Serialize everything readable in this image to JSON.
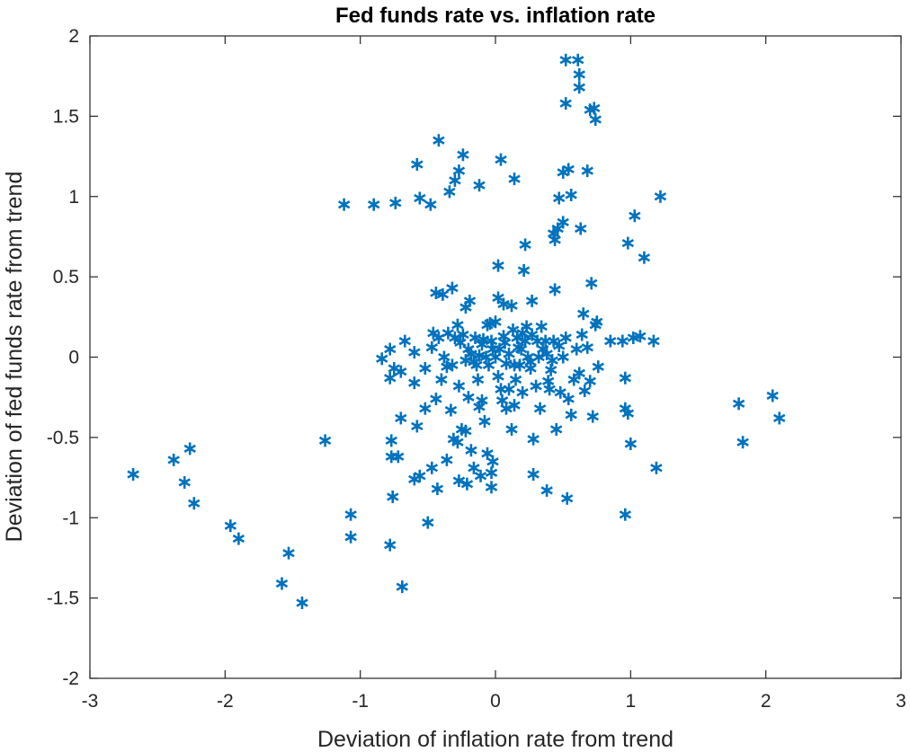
{
  "chart_data": {
    "type": "scatter",
    "title": "Fed funds rate vs. inflation rate",
    "xlabel": "Deviation of inflation rate from trend",
    "ylabel": "Deviation of fed funds rate from trend",
    "xlim": [
      -3,
      3
    ],
    "ylim": [
      -2,
      2
    ],
    "xticks": [
      -3,
      -2,
      -1,
      0,
      1,
      2,
      3
    ],
    "yticks": [
      -2,
      -1.5,
      -1,
      -0.5,
      0,
      0.5,
      1,
      1.5,
      2
    ],
    "xtick_labels": [
      "-3",
      "-2",
      "-1",
      "0",
      "1",
      "2",
      "3"
    ],
    "ytick_labels": [
      "-2",
      "-1.5",
      "-1",
      "-0.5",
      "0",
      "0.5",
      "1",
      "1.5",
      "2"
    ],
    "grid": false,
    "marker": "*",
    "color": "#0072BD",
    "axis_color": "#262626",
    "points": [
      [
        -2.68,
        -0.73
      ],
      [
        -2.38,
        -0.64
      ],
      [
        -2.3,
        -0.78
      ],
      [
        -2.26,
        -0.57
      ],
      [
        -2.23,
        -0.91
      ],
      [
        -1.96,
        -1.05
      ],
      [
        -1.9,
        -1.13
      ],
      [
        -1.53,
        -1.22
      ],
      [
        -1.58,
        -1.41
      ],
      [
        -1.43,
        -1.53
      ],
      [
        -1.26,
        -0.52
      ],
      [
        -1.07,
        -0.98
      ],
      [
        -1.07,
        -1.12
      ],
      [
        -0.78,
        -1.17
      ],
      [
        -0.76,
        -0.87
      ],
      [
        -0.77,
        -0.52
      ],
      [
        -0.77,
        -0.62
      ],
      [
        -0.72,
        -0.62
      ],
      [
        -0.69,
        -1.43
      ],
      [
        -0.5,
        -1.03
      ],
      [
        -0.47,
        -0.69
      ],
      [
        -0.43,
        -0.82
      ],
      [
        -0.6,
        -0.76
      ],
      [
        -0.36,
        -0.64
      ],
      [
        -0.56,
        -0.74
      ],
      [
        -0.27,
        -0.77
      ],
      [
        -0.21,
        -0.79
      ],
      [
        -0.16,
        -0.69
      ],
      [
        -0.11,
        -0.74
      ],
      [
        -0.06,
        -0.6
      ],
      [
        -0.03,
        -0.72
      ],
      [
        -0.02,
        -0.65
      ],
      [
        -0.03,
        -0.81
      ],
      [
        0.28,
        -0.73
      ],
      [
        0.38,
        -0.83
      ],
      [
        0.53,
        -0.88
      ],
      [
        0.96,
        -0.98
      ],
      [
        1.0,
        -0.54
      ],
      [
        1.19,
        -0.69
      ],
      [
        1.83,
        -0.53
      ],
      [
        1.8,
        -0.29
      ],
      [
        2.05,
        -0.24
      ],
      [
        2.1,
        -0.38
      ],
      [
        -1.12,
        0.95
      ],
      [
        -0.9,
        0.95
      ],
      [
        -0.74,
        0.96
      ],
      [
        -0.56,
        0.99
      ],
      [
        -0.48,
        0.95
      ],
      [
        -0.58,
        1.2
      ],
      [
        -0.42,
        1.35
      ],
      [
        -0.34,
        1.03
      ],
      [
        -0.3,
        1.1
      ],
      [
        -0.27,
        1.16
      ],
      [
        -0.24,
        1.26
      ],
      [
        -0.12,
        1.07
      ],
      [
        0.04,
        1.23
      ],
      [
        0.14,
        1.11
      ],
      [
        0.47,
        0.99
      ],
      [
        0.5,
        1.15
      ],
      [
        0.54,
        1.17
      ],
      [
        0.56,
        1.01
      ],
      [
        0.68,
        1.16
      ],
      [
        0.52,
        1.58
      ],
      [
        0.62,
        1.68
      ],
      [
        0.62,
        1.76
      ],
      [
        0.7,
        1.54
      ],
      [
        0.73,
        1.55
      ],
      [
        0.74,
        1.48
      ],
      [
        0.52,
        1.85
      ],
      [
        0.61,
        1.85
      ],
      [
        0.43,
        0.77
      ],
      [
        0.46,
        0.8
      ],
      [
        0.5,
        0.84
      ],
      [
        0.44,
        0.73
      ],
      [
        0.63,
        0.8
      ],
      [
        0.98,
        0.71
      ],
      [
        1.03,
        0.88
      ],
      [
        1.1,
        0.62
      ],
      [
        1.22,
        1.0
      ],
      [
        0.71,
        0.46
      ],
      [
        0.22,
        0.7
      ],
      [
        0.21,
        0.54
      ],
      [
        0.02,
        0.57
      ],
      [
        0.44,
        0.42
      ],
      [
        0.27,
        0.35
      ],
      [
        -0.44,
        0.4
      ],
      [
        -0.32,
        0.43
      ],
      [
        -0.39,
        0.39
      ],
      [
        0.02,
        0.37
      ],
      [
        0.12,
        0.32
      ],
      [
        0.65,
        0.27
      ],
      [
        0.75,
        0.22
      ],
      [
        0.85,
        0.1
      ],
      [
        0.94,
        0.1
      ],
      [
        1.02,
        0.12
      ],
      [
        1.07,
        0.13
      ],
      [
        1.17,
        0.1
      ],
      [
        0.96,
        -0.13
      ],
      [
        0.96,
        -0.32
      ],
      [
        0.98,
        -0.35
      ],
      [
        -0.84,
        -0.01
      ],
      [
        -0.78,
        0.05
      ],
      [
        -0.78,
        -0.13
      ],
      [
        -0.75,
        -0.07
      ],
      [
        -0.7,
        -0.09
      ],
      [
        -0.67,
        0.1
      ],
      [
        -0.6,
        0.03
      ],
      [
        -0.6,
        -0.16
      ],
      [
        -0.58,
        -0.43
      ],
      [
        -0.7,
        -0.38
      ],
      [
        -0.52,
        -0.32
      ],
      [
        -0.52,
        -0.07
      ],
      [
        -0.47,
        0.06
      ],
      [
        -0.44,
        -0.26
      ],
      [
        -0.4,
        -0.14
      ],
      [
        -0.38,
        0.0
      ],
      [
        -0.36,
        -0.06
      ],
      [
        -0.33,
        -0.33
      ],
      [
        -0.31,
        -0.51
      ],
      [
        -0.28,
        -0.53
      ],
      [
        -0.25,
        -0.45
      ],
      [
        -0.22,
        -0.46
      ],
      [
        -0.2,
        -0.25
      ],
      [
        -0.18,
        -0.58
      ],
      [
        -0.16,
        -0.03
      ],
      [
        -0.14,
        -0.05
      ],
      [
        -0.13,
        -0.14
      ],
      [
        -0.12,
        -0.31
      ],
      [
        -0.1,
        -0.27
      ],
      [
        -0.08,
        -0.4
      ],
      [
        -0.05,
        -0.05
      ],
      [
        -0.04,
        0.21
      ],
      [
        -0.03,
        0.1
      ],
      [
        -0.02,
        0.05
      ],
      [
        0.0,
        0.0
      ],
      [
        0.02,
        -0.12
      ],
      [
        0.04,
        -0.2
      ],
      [
        0.05,
        -0.27
      ],
      [
        0.08,
        -0.32
      ],
      [
        0.1,
        -0.2
      ],
      [
        0.12,
        -0.45
      ],
      [
        0.14,
        -0.3
      ],
      [
        0.15,
        -0.14
      ],
      [
        0.17,
        0.06
      ],
      [
        0.18,
        -0.05
      ],
      [
        0.2,
        0.15
      ],
      [
        0.22,
        0.1
      ],
      [
        0.24,
        0.0
      ],
      [
        0.26,
        -0.07
      ],
      [
        0.28,
        -0.51
      ],
      [
        0.3,
        -0.18
      ],
      [
        0.33,
        -0.32
      ],
      [
        0.35,
        0.05
      ],
      [
        0.37,
        0.1
      ],
      [
        0.39,
        -0.15
      ],
      [
        0.41,
        -0.08
      ],
      [
        0.43,
        0.1
      ],
      [
        0.45,
        -0.45
      ],
      [
        0.48,
        -0.22
      ],
      [
        0.5,
        0.0
      ],
      [
        0.52,
        0.12
      ],
      [
        0.54,
        -0.26
      ],
      [
        0.56,
        -0.36
      ],
      [
        0.58,
        -0.14
      ],
      [
        0.6,
        0.05
      ],
      [
        0.62,
        -0.1
      ],
      [
        0.64,
        0.14
      ],
      [
        0.66,
        -0.21
      ],
      [
        0.68,
        0.06
      ],
      [
        0.7,
        -0.15
      ],
      [
        0.72,
        -0.37
      ],
      [
        0.74,
        0.2
      ],
      [
        0.76,
        -0.06
      ],
      [
        -0.24,
        0.14
      ],
      [
        -0.2,
        0.05
      ],
      [
        -0.15,
        0.12
      ],
      [
        -0.1,
        0.08
      ],
      [
        -0.06,
        0.2
      ],
      [
        0.06,
        0.13
      ],
      [
        0.1,
        0.02
      ],
      [
        -0.3,
        0.12
      ],
      [
        -0.28,
        0.2
      ],
      [
        -0.26,
        0.09
      ],
      [
        -0.22,
        -0.02
      ],
      [
        -0.18,
        0.02
      ],
      [
        -0.12,
        0.01
      ],
      [
        -0.09,
        0.11
      ],
      [
        -0.07,
        0.0
      ],
      [
        0.03,
        0.05
      ],
      [
        0.07,
        0.09
      ],
      [
        0.13,
        0.17
      ],
      [
        0.16,
        0.12
      ],
      [
        0.19,
        0.05
      ],
      [
        0.23,
        0.19
      ],
      [
        0.27,
        0.14
      ],
      [
        0.31,
        0.1
      ],
      [
        0.34,
        0.19
      ],
      [
        0.38,
        0.02
      ],
      [
        0.42,
        -0.02
      ],
      [
        0.47,
        0.07
      ],
      [
        -0.46,
        0.15
      ],
      [
        -0.42,
        0.12
      ],
      [
        -0.35,
        0.15
      ],
      [
        -0.32,
        -0.05
      ],
      [
        -0.27,
        -0.18
      ],
      [
        -0.22,
        0.31
      ],
      [
        -0.19,
        0.35
      ],
      [
        0.06,
        0.33
      ],
      [
        0.0,
        0.22
      ],
      [
        0.08,
        -0.04
      ],
      [
        0.14,
        -0.05
      ],
      [
        0.2,
        -0.22
      ],
      [
        0.26,
        -0.03
      ],
      [
        0.32,
        0.0
      ],
      [
        0.4,
        -0.2
      ]
    ]
  }
}
